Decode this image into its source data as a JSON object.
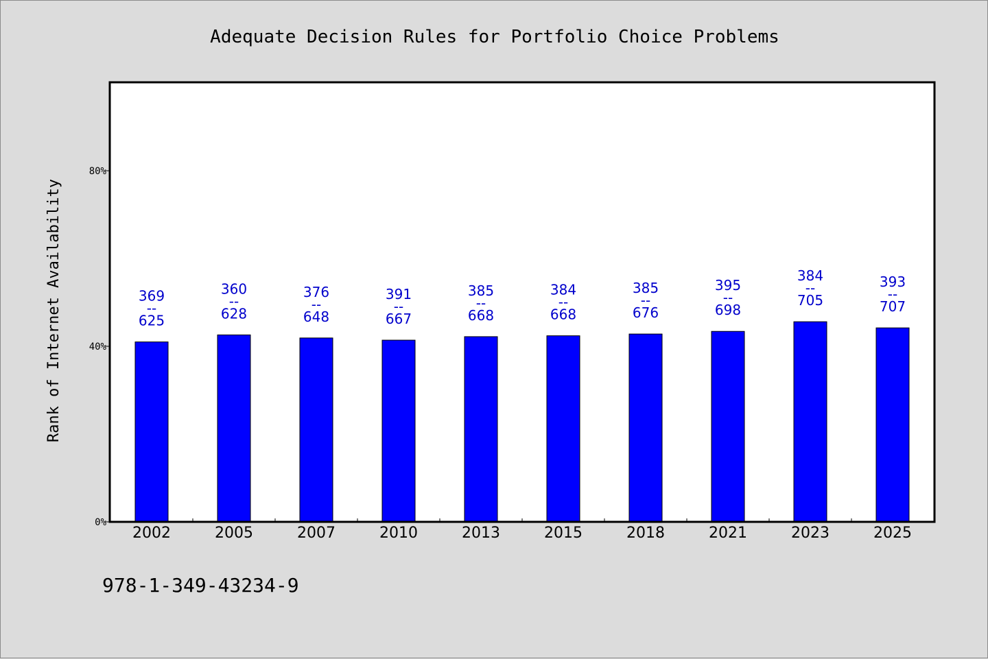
{
  "chart_data": {
    "type": "bar",
    "title": "Adequate Decision Rules for Portfolio Choice Problems",
    "ylabel": "Rank of Internet Availability",
    "xlabel": "",
    "categories": [
      "2002",
      "2005",
      "2007",
      "2010",
      "2013",
      "2015",
      "2018",
      "2021",
      "2023",
      "2025"
    ],
    "series": [
      {
        "values": [
          41.0,
          42.6,
          41.9,
          41.4,
          42.2,
          42.4,
          42.8,
          43.4,
          45.6,
          44.2
        ],
        "color": "#0000ff"
      }
    ],
    "bar_labels": [
      {
        "top": "369",
        "sep": "--",
        "bottom": "625"
      },
      {
        "top": "360",
        "sep": "--",
        "bottom": "628"
      },
      {
        "top": "376",
        "sep": "--",
        "bottom": "648"
      },
      {
        "top": "391",
        "sep": "--",
        "bottom": "667"
      },
      {
        "top": "385",
        "sep": "--",
        "bottom": "668"
      },
      {
        "top": "384",
        "sep": "--",
        "bottom": "668"
      },
      {
        "top": "385",
        "sep": "--",
        "bottom": "676"
      },
      {
        "top": "395",
        "sep": "--",
        "bottom": "698"
      },
      {
        "top": "384",
        "sep": "--",
        "bottom": "705"
      },
      {
        "top": "393",
        "sep": "--",
        "bottom": "707"
      }
    ],
    "ylim": [
      0,
      100
    ],
    "yticks": [
      0,
      40,
      80
    ],
    "ytick_labels": [
      "0%",
      "40%",
      "80%"
    ],
    "grid": false,
    "legend": "none",
    "background": "#dcdcdc",
    "plot_background": "#ffffff",
    "label_color": "#0000cc"
  },
  "footer": {
    "isbn": "978-1-349-43234-9"
  }
}
